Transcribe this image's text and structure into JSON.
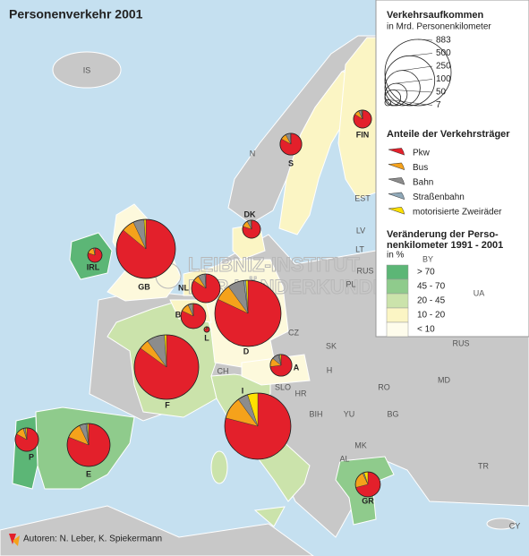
{
  "title": "Personenverkehr 2001",
  "size_legend": {
    "title": "Verkehrsaufkommen",
    "subtitle": "in Mrd. Personenkilometer",
    "values": [
      883,
      500,
      250,
      100,
      50,
      7
    ]
  },
  "modes_legend": {
    "title": "Anteile der Verkehrsträger",
    "modes": [
      {
        "name": "Pkw",
        "color": "#e3202b"
      },
      {
        "name": "Bus",
        "color": "#f5a21b"
      },
      {
        "name": "Bahn",
        "color": "#8c8c8c"
      },
      {
        "name": "Straßenbahn",
        "color": "#8fa8b8"
      },
      {
        "name": "motorisierte Zweiräder",
        "color": "#ffe000"
      }
    ]
  },
  "change_legend": {
    "title_lines": [
      "Veränderung der Perso-",
      "nenkilometer 1991 - 2001"
    ],
    "unit": "in %",
    "classes": [
      {
        "label": "> 70",
        "color": "#5cb676"
      },
      {
        "label": "45 - 70",
        "color": "#8fcb8c"
      },
      {
        "label": "20 - 45",
        "color": "#cbe3ab"
      },
      {
        "label": "10 - 20",
        "color": "#fbf5c4"
      },
      {
        "label": "< 10",
        "color": "#fefcec"
      }
    ]
  },
  "countries": [
    {
      "label": "FIN",
      "total": 65,
      "shares": [
        84,
        9,
        5,
        1,
        1
      ]
    },
    {
      "label": "S",
      "total": 95,
      "shares": [
        83,
        9,
        7,
        1,
        0
      ]
    },
    {
      "label": "DK",
      "total": 65,
      "shares": [
        80,
        12,
        7,
        0,
        1
      ]
    },
    {
      "label": "IRL",
      "total": 41,
      "shares": [
        80,
        17,
        3,
        0,
        0
      ]
    },
    {
      "label": "GB",
      "total": 700,
      "shares": [
        86,
        7,
        6,
        0,
        1
      ]
    },
    {
      "label": "NL",
      "total": 165,
      "shares": [
        84,
        7,
        8,
        1,
        0
      ]
    },
    {
      "label": "B",
      "total": 125,
      "shares": [
        82,
        11,
        6,
        0,
        1
      ]
    },
    {
      "label": "L",
      "total": 6,
      "shares": [
        83,
        12,
        4,
        0,
        1
      ]
    },
    {
      "label": "D",
      "total": 880,
      "shares": [
        82,
        8,
        8,
        1,
        1
      ]
    },
    {
      "label": "F",
      "total": 835,
      "shares": [
        85,
        5,
        9,
        0,
        1
      ]
    },
    {
      "label": "A",
      "total": 95,
      "shares": [
        73,
        13,
        10,
        2,
        2
      ]
    },
    {
      "label": "I",
      "total": 880,
      "shares": [
        79,
        11,
        5,
        0,
        5
      ]
    },
    {
      "label": "P",
      "total": 110,
      "shares": [
        83,
        12,
        3,
        0,
        2
      ]
    },
    {
      "label": "E",
      "total": 370,
      "shares": [
        81,
        12,
        5,
        1,
        1
      ]
    },
    {
      "label": "GR",
      "total": 125,
      "shares": [
        71,
        22,
        2,
        0,
        5
      ]
    }
  ],
  "other_labels": [
    "IS",
    "N",
    "EST",
    "LV",
    "LT",
    "RUS",
    "BY",
    "PL",
    "UA",
    "CZ",
    "SK",
    "MD",
    "H",
    "RO",
    "CH",
    "SLO",
    "HR",
    "BIH",
    "YU",
    "BG",
    "MK",
    "AL",
    "TR",
    "CY",
    "RUS"
  ],
  "watermark": [
    "LEIBNIZ-INSTITUT",
    "FÜR LÄNDERKUNDE"
  ],
  "authors": "Autoren:  N. Leber, K. Spiekermann"
}
